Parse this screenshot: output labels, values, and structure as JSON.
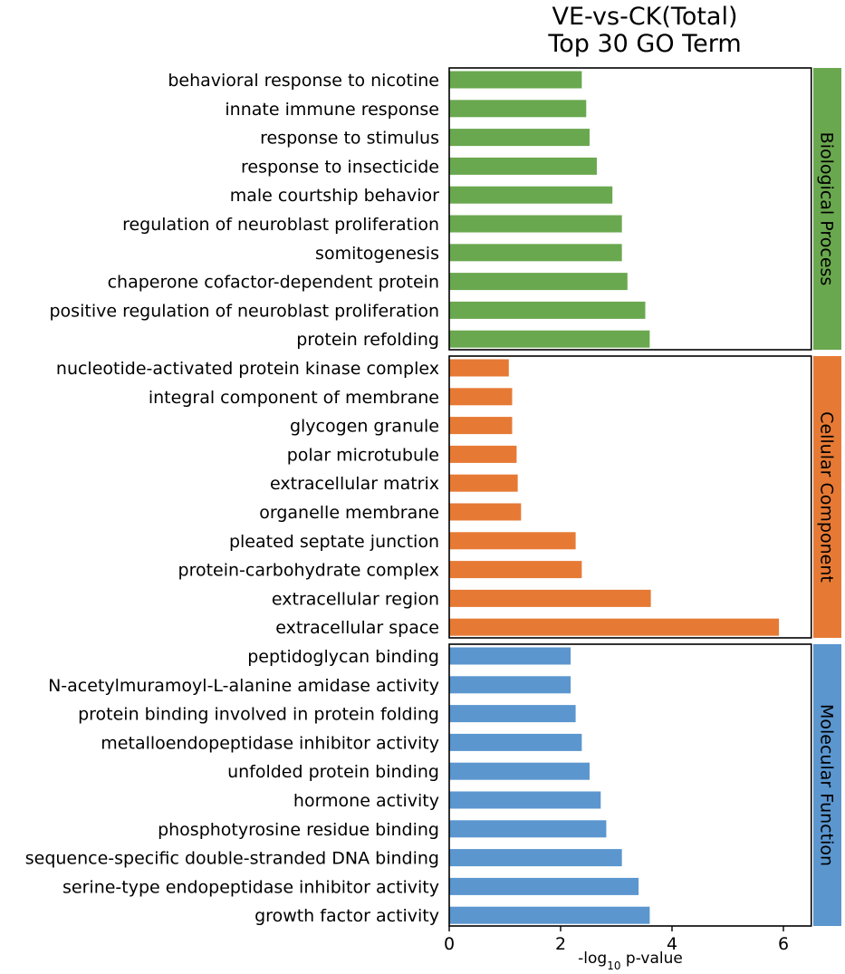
{
  "chart_data": {
    "type": "bar",
    "orientation": "horizontal",
    "title": [
      "VE-vs-CK(Total)",
      "Top 30 GO Term"
    ],
    "xlabel": {
      "prefix": "-log",
      "subscript": "10",
      "suffix": " p-value"
    },
    "xlim": [
      0,
      6.5
    ],
    "xticks": [
      0,
      2,
      4,
      6
    ],
    "grid": false,
    "groups": [
      {
        "name": "Biological Process",
        "color": "#6aa84f",
        "categories": [
          "behavioral response to nicotine",
          "innate immune response",
          "response to stimulus",
          "response to insecticide",
          "male courtship behavior",
          "regulation of neuroblast proliferation",
          "somitogenesis",
          "chaperone cofactor-dependent protein",
          "positive regulation of neuroblast proliferation",
          "protein refolding"
        ],
        "values": [
          2.38,
          2.46,
          2.52,
          2.65,
          2.93,
          3.1,
          3.1,
          3.2,
          3.52,
          3.6
        ]
      },
      {
        "name": "Cellular Component",
        "color": "#e67a35",
        "categories": [
          "nucleotide-activated protein kinase complex",
          "integral component of membrane",
          "glycogen granule",
          "polar microtubule",
          "extracellular matrix",
          "organelle membrane",
          "pleated septate junction",
          "protein-carbohydrate complex",
          "extracellular region",
          "extracellular space"
        ],
        "values": [
          1.07,
          1.13,
          1.13,
          1.21,
          1.23,
          1.29,
          2.27,
          2.38,
          3.62,
          5.92
        ]
      },
      {
        "name": "Molecular Function",
        "color": "#5b96cf",
        "categories": [
          "peptidoglycan binding",
          "N-acetylmuramoyl-L-alanine amidase activity",
          "protein binding involved in protein folding",
          "metalloendopeptidase inhibitor activity",
          "unfolded protein binding",
          "hormone activity",
          "phosphotyrosine residue binding",
          "sequence-specific double-stranded DNA binding",
          "serine-type endopeptidase inhibitor activity",
          "growth factor activity"
        ],
        "values": [
          2.18,
          2.18,
          2.27,
          2.38,
          2.52,
          2.72,
          2.82,
          3.1,
          3.4,
          3.6
        ]
      }
    ]
  }
}
